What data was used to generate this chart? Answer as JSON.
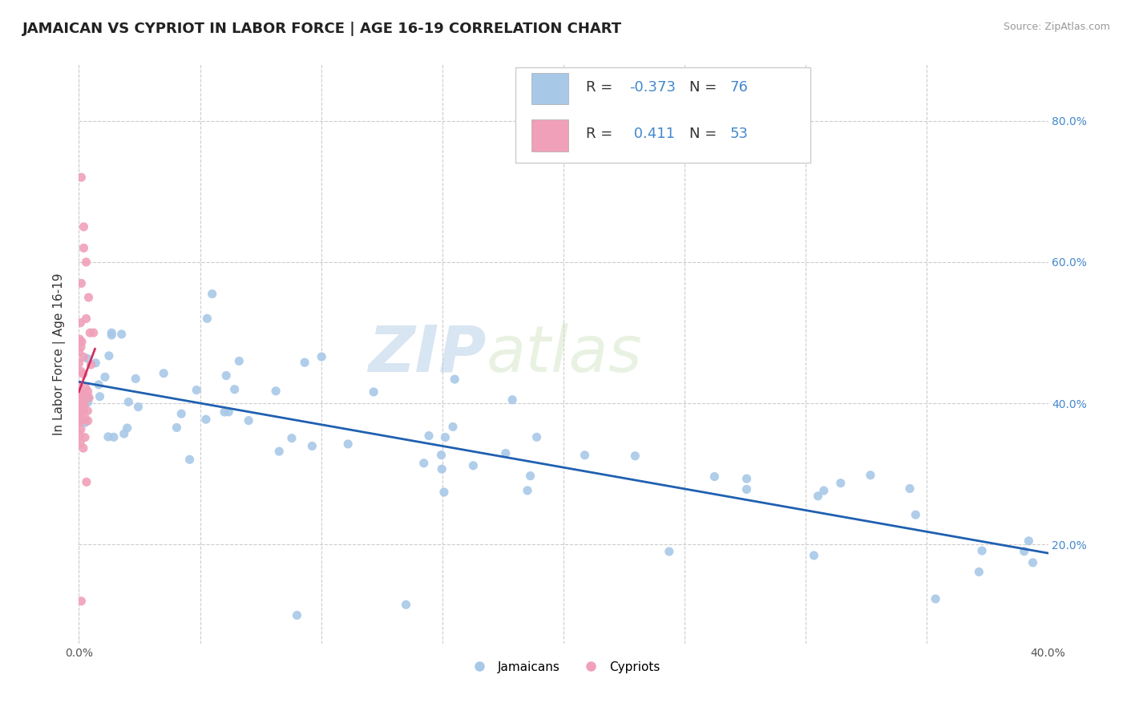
{
  "title": "JAMAICAN VS CYPRIOT IN LABOR FORCE | AGE 16-19 CORRELATION CHART",
  "source_text": "Source: ZipAtlas.com",
  "ylabel": "In Labor Force | Age 16-19",
  "xlim": [
    0.0,
    0.4
  ],
  "ylim": [
    0.06,
    0.88
  ],
  "blue_R": -0.373,
  "blue_N": 76,
  "pink_R": 0.411,
  "pink_N": 53,
  "blue_color": "#a8c8e8",
  "pink_color": "#f0a0b8",
  "blue_line_color": "#2060b0",
  "pink_line_color": "#d03060",
  "watermark_zip": "ZIP",
  "watermark_atlas": "atlas",
  "legend_label_blue": "Jamaicans",
  "legend_label_pink": "Cypriots",
  "blue_x": [
    0.005,
    0.007,
    0.008,
    0.01,
    0.01,
    0.012,
    0.013,
    0.014,
    0.015,
    0.016,
    0.017,
    0.018,
    0.019,
    0.02,
    0.022,
    0.023,
    0.025,
    0.026,
    0.027,
    0.028,
    0.03,
    0.032,
    0.034,
    0.036,
    0.038,
    0.04,
    0.042,
    0.045,
    0.048,
    0.05,
    0.055,
    0.06,
    0.065,
    0.07,
    0.075,
    0.08,
    0.085,
    0.09,
    0.095,
    0.1,
    0.11,
    0.115,
    0.12,
    0.125,
    0.13,
    0.135,
    0.14,
    0.145,
    0.15,
    0.155,
    0.16,
    0.165,
    0.17,
    0.175,
    0.18,
    0.2,
    0.21,
    0.22,
    0.23,
    0.24,
    0.25,
    0.26,
    0.27,
    0.28,
    0.29,
    0.3,
    0.31,
    0.32,
    0.33,
    0.35,
    0.36,
    0.37,
    0.38,
    0.39,
    0.05,
    0.1
  ],
  "blue_y": [
    0.425,
    0.42,
    0.415,
    0.41,
    0.43,
    0.405,
    0.415,
    0.435,
    0.425,
    0.42,
    0.435,
    0.43,
    0.415,
    0.425,
    0.42,
    0.41,
    0.415,
    0.42,
    0.43,
    0.425,
    0.415,
    0.41,
    0.42,
    0.415,
    0.425,
    0.418,
    0.41,
    0.43,
    0.425,
    0.54,
    0.415,
    0.43,
    0.42,
    0.415,
    0.41,
    0.415,
    0.42,
    0.425,
    0.415,
    0.425,
    0.42,
    0.43,
    0.415,
    0.425,
    0.42,
    0.41,
    0.415,
    0.425,
    0.42,
    0.415,
    0.42,
    0.43,
    0.415,
    0.42,
    0.425,
    0.41,
    0.415,
    0.42,
    0.415,
    0.425,
    0.415,
    0.415,
    0.415,
    0.41,
    0.41,
    0.415,
    0.415,
    0.415,
    0.41,
    0.33,
    0.31,
    0.3,
    0.28,
    0.27,
    0.12,
    0.28
  ],
  "pink_x": [
    0.001,
    0.001,
    0.002,
    0.002,
    0.002,
    0.003,
    0.003,
    0.003,
    0.004,
    0.004,
    0.005,
    0.005,
    0.005,
    0.006,
    0.006,
    0.007,
    0.007,
    0.008,
    0.008,
    0.009,
    0.009,
    0.01,
    0.011,
    0.012,
    0.013,
    0.014,
    0.015,
    0.016,
    0.017,
    0.018,
    0.019,
    0.02,
    0.022,
    0.024,
    0.026,
    0.028,
    0.03,
    0.002,
    0.002,
    0.003,
    0.003,
    0.004,
    0.004,
    0.005,
    0.006,
    0.007,
    0.008,
    0.009,
    0.01,
    0.012,
    0.014,
    0.016,
    0.03
  ],
  "pink_y": [
    0.415,
    0.38,
    0.42,
    0.395,
    0.36,
    0.425,
    0.4,
    0.365,
    0.415,
    0.385,
    0.42,
    0.39,
    0.36,
    0.41,
    0.375,
    0.415,
    0.38,
    0.41,
    0.37,
    0.405,
    0.375,
    0.4,
    0.395,
    0.39,
    0.385,
    0.38,
    0.375,
    0.37,
    0.365,
    0.36,
    0.355,
    0.35,
    0.34,
    0.33,
    0.32,
    0.31,
    0.3,
    0.56,
    0.49,
    0.6,
    0.53,
    0.64,
    0.58,
    0.5,
    0.62,
    0.555,
    0.475,
    0.44,
    0.45,
    0.43,
    0.42,
    0.41,
    0.155
  ],
  "title_fontsize": 13,
  "axis_label_fontsize": 11,
  "tick_fontsize": 10,
  "legend_fontsize": 13
}
